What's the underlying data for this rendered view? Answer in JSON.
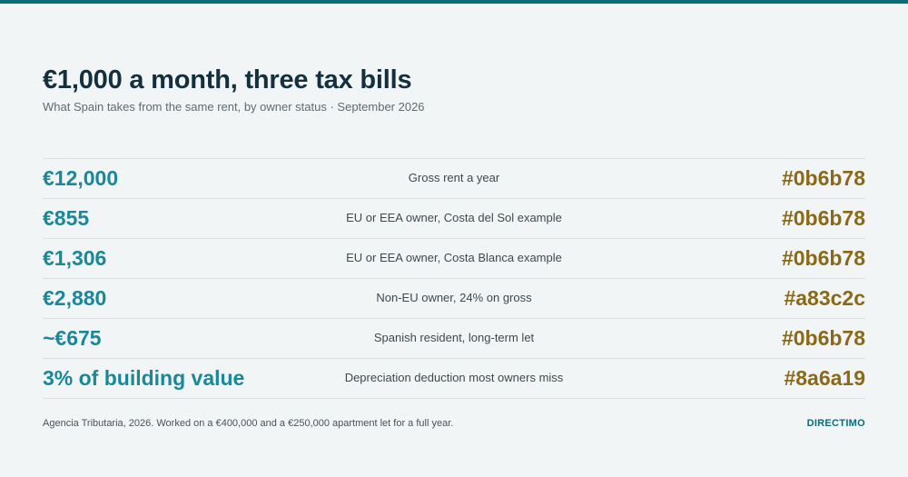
{
  "header": {
    "title": "€1,000 a month, three tax bills",
    "subtitle": "What Spain takes from the same rent, by owner status · September 2026"
  },
  "rows": [
    {
      "value": "€12,000",
      "label": "Gross rent a year",
      "hex": "#0b6b78"
    },
    {
      "value": "€855",
      "label": "EU or EEA owner, Costa del Sol example",
      "hex": "#0b6b78"
    },
    {
      "value": "€1,306",
      "label": "EU or EEA owner, Costa Blanca example",
      "hex": "#0b6b78"
    },
    {
      "value": "€2,880",
      "label": "Non-EU owner, 24% on gross",
      "hex": "#a83c2c"
    },
    {
      "value": "~€675",
      "label": "Spanish resident, long-term let",
      "hex": "#0b6b78"
    },
    {
      "value": "3% of building value",
      "label": "Depreciation deduction most owners miss",
      "hex": "#8a6a19"
    }
  ],
  "footer": {
    "source": "Agencia Tributaria, 2026. Worked on a €400,000 and a €250,000 apartment let for a full year.",
    "brand": "DIRECTIMO"
  },
  "colors": {
    "accent": "#0b6b78",
    "value_text": "#1a8898",
    "hex_text": "#8a6a19",
    "title_text": "#14303d"
  }
}
